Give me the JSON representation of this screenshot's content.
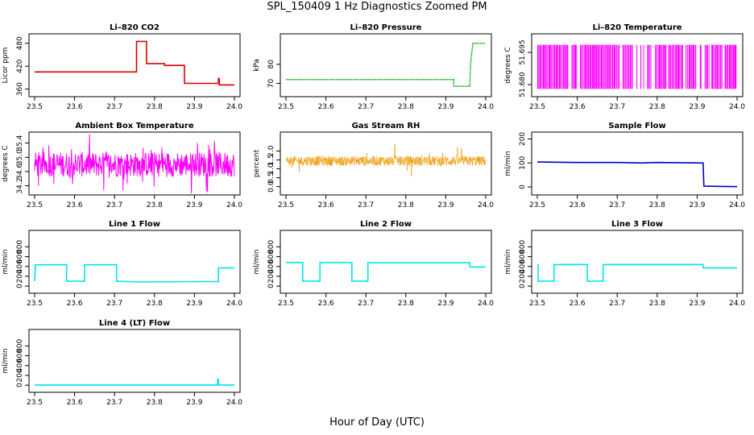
{
  "page": {
    "title": "SPL_150409  1 Hz Diagnostics Zoomed PM",
    "xlabel": "Hour of Day (UTC)"
  },
  "chart_data": [
    {
      "type": "line",
      "title": "Li–820 CO2",
      "ylabel": "Licor ppm",
      "color": "#dd0000",
      "xlim": [
        23.5,
        24.0
      ],
      "ylim": [
        355,
        490
      ],
      "xticks": [
        "23.5",
        "23.6",
        "23.7",
        "23.8",
        "23.9",
        "24.0"
      ],
      "yticks": [
        360,
        420,
        480
      ],
      "ytick_labels": [
        "360",
        "420",
        "480"
      ],
      "series": [
        {
          "style": "line",
          "x": [
            23.5,
            23.755,
            23.755,
            23.78,
            23.78,
            23.825,
            23.825,
            23.875,
            23.875,
            23.96,
            23.96,
            23.962,
            23.962,
            24.0
          ],
          "y": [
            405,
            405,
            485,
            485,
            427,
            427,
            422,
            422,
            375,
            375,
            388,
            388,
            371,
            371
          ]
        }
      ]
    },
    {
      "type": "line",
      "title": "Li–820 Pressure",
      "ylabel": "kPa",
      "color": "#00aa00",
      "xlim": [
        23.5,
        24.0
      ],
      "ylim": [
        66,
        93
      ],
      "xticks": [
        "23.5",
        "23.6",
        "23.7",
        "23.8",
        "23.9",
        "24.0"
      ],
      "yticks": [
        70,
        80
      ],
      "ytick_labels": [
        "70",
        "80"
      ],
      "series": [
        {
          "style": "line",
          "x": [
            23.5,
            23.92,
            23.92,
            23.96,
            23.962,
            23.965,
            23.968,
            24.0
          ],
          "y": [
            72,
            72,
            68.5,
            68.5,
            80,
            86,
            91,
            91
          ]
        }
      ]
    },
    {
      "type": "line",
      "title": "Li–820 Temperature",
      "ylabel": "degrees C",
      "color": "#ff00ff",
      "xlim": [
        23.5,
        24.0
      ],
      "ylim": [
        51.677,
        51.701
      ],
      "xticks": [
        "23.5",
        "23.6",
        "23.7",
        "23.8",
        "23.9",
        "24.0"
      ],
      "yticks": [
        51.68,
        51.695
      ],
      "ytick_labels": [
        "51.680",
        "51.695"
      ],
      "series": [
        {
          "style": "line",
          "x": [
            23.5,
            24.0
          ],
          "y": [
            51.6985,
            51.6985
          ]
        },
        {
          "style": "line",
          "x": [
            23.5,
            24.0
          ],
          "y": [
            51.678,
            51.678
          ]
        }
      ]
    },
    {
      "type": "line",
      "title": "Ambient Box Temperature",
      "ylabel": "degrees C",
      "color": "#ff00ff",
      "xlim": [
        23.5,
        24.0
      ],
      "ylim": [
        34.1,
        35.55
      ],
      "xticks": [
        "23.5",
        "23.6",
        "23.7",
        "23.8",
        "23.9",
        "24.0"
      ],
      "yticks": [
        34.2,
        34.6,
        35.0,
        35.4
      ],
      "ytick_labels": [
        "34.2",
        "34.6",
        "35.0",
        "35.4"
      ],
      "series": [
        {
          "style": "line",
          "x": [
            23.5,
            24.0
          ],
          "y": [
            34.8,
            34.8
          ]
        }
      ]
    },
    {
      "type": "line",
      "title": "Gas Stream RH",
      "ylabel": "percent",
      "color": "#ee9900",
      "xlim": [
        23.5,
        24.0
      ],
      "ylim": [
        -0.15,
        2.75
      ],
      "xticks": [
        "23.5",
        "23.6",
        "23.7",
        "23.8",
        "23.9",
        "24.0"
      ],
      "yticks": [
        0.0,
        0.5,
        1.0,
        1.5,
        2.0
      ],
      "ytick_labels": [
        "0.0",
        "0.5",
        "1.0",
        "1.5",
        "2.0"
      ],
      "series": [
        {
          "style": "line",
          "x": [
            23.5,
            24.0
          ],
          "y": [
            1.45,
            1.45
          ]
        }
      ]
    },
    {
      "type": "line",
      "title": "Sample Flow",
      "ylabel": "ml/min",
      "color": "#0000cc",
      "xlim": [
        23.5,
        24.0
      ],
      "ylim": [
        -10,
        205
      ],
      "xticks": [
        "23.5",
        "23.6",
        "23.7",
        "23.8",
        "23.9",
        "24.0"
      ],
      "yticks": [
        0,
        100,
        200
      ],
      "ytick_labels": [
        "0",
        "100",
        "200"
      ],
      "series": [
        {
          "style": "line",
          "x": [
            23.5,
            23.6,
            23.7,
            23.76,
            23.8,
            23.915,
            23.917,
            24.0
          ],
          "y": [
            104,
            102,
            102,
            100,
            102,
            100,
            3,
            1
          ]
        }
      ]
    },
    {
      "type": "line",
      "title": "Line 1 Flow",
      "ylabel": "ml/min",
      "color": "#00e5ee",
      "xlim": [
        23.5,
        24.0
      ],
      "ylim": [
        -30,
        1020
      ],
      "xticks": [
        "23.5",
        "23.6",
        "23.7",
        "23.8",
        "23.9",
        "24.0"
      ],
      "yticks": [
        0,
        200,
        400,
        600,
        800
      ],
      "ytick_labels": [
        "0",
        "200",
        "400",
        "600",
        "800"
      ],
      "series": [
        {
          "style": "line",
          "x": [
            23.5,
            23.502,
            23.58,
            23.58,
            23.625,
            23.625,
            23.705,
            23.705,
            23.76,
            23.96,
            23.96,
            24.0
          ],
          "y": [
            100,
            435,
            435,
            100,
            100,
            435,
            435,
            100,
            85,
            95,
            370,
            370
          ]
        }
      ]
    },
    {
      "type": "line",
      "title": "Line 2 Flow",
      "ylabel": "ml/min",
      "color": "#00e5ee",
      "xlim": [
        23.5,
        24.0
      ],
      "ylim": [
        -30,
        1020
      ],
      "xticks": [
        "23.5",
        "23.6",
        "23.7",
        "23.8",
        "23.9",
        "24.0"
      ],
      "yticks": [
        0,
        200,
        400,
        600,
        800
      ],
      "ytick_labels": [
        "0",
        "200",
        "400",
        "600",
        "800"
      ],
      "series": [
        {
          "style": "line",
          "x": [
            23.5,
            23.542,
            23.542,
            23.585,
            23.585,
            23.665,
            23.665,
            23.705,
            23.705,
            23.96,
            23.96,
            24.0
          ],
          "y": [
            480,
            480,
            100,
            100,
            480,
            480,
            100,
            100,
            475,
            475,
            390,
            390
          ]
        }
      ]
    },
    {
      "type": "line",
      "title": "Line 3 Flow",
      "ylabel": "ml/min",
      "color": "#00e5ee",
      "xlim": [
        23.5,
        24.0
      ],
      "ylim": [
        -30,
        1020
      ],
      "xticks": [
        "23.5",
        "23.6",
        "23.7",
        "23.8",
        "23.9",
        "24.0"
      ],
      "yticks": [
        0,
        200,
        400,
        600,
        800
      ],
      "ytick_labels": [
        "0",
        "200",
        "400",
        "600",
        "800"
      ],
      "series": [
        {
          "style": "line",
          "x": [
            23.5,
            23.502,
            23.502,
            23.542,
            23.542,
            23.625,
            23.625,
            23.665,
            23.665,
            23.915,
            23.915,
            24.0
          ],
          "y": [
            440,
            440,
            100,
            100,
            440,
            440,
            100,
            100,
            440,
            440,
            370,
            370
          ]
        }
      ]
    },
    {
      "type": "line",
      "title": "Line 4 (LT) Flow",
      "ylabel": "ml/min",
      "color": "#00e5ee",
      "xlim": [
        23.5,
        24.0
      ],
      "ylim": [
        -30,
        1020
      ],
      "xticks": [
        "23.5",
        "23.6",
        "23.7",
        "23.8",
        "23.9",
        "24.0"
      ],
      "yticks": [
        0,
        200,
        400,
        600,
        800
      ],
      "ytick_labels": [
        "0",
        "200",
        "400",
        "600",
        "800"
      ],
      "series": [
        {
          "style": "line",
          "x": [
            23.5,
            23.958,
            23.958,
            23.96,
            23.96,
            24.0
          ],
          "y": [
            5,
            5,
            120,
            120,
            5,
            5
          ]
        }
      ]
    }
  ]
}
